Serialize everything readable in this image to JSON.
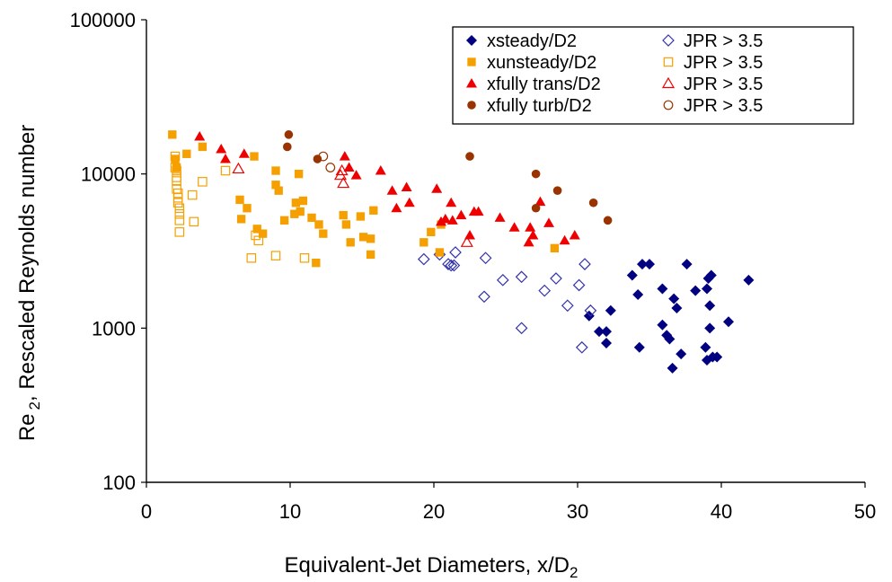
{
  "chart_data": {
    "type": "scatter",
    "title": "",
    "xlabel": "Equivalent-Jet Diameters, x/D",
    "xlabel_sub": "2",
    "ylabel": "Re",
    "ylabel_sub": "2",
    "ylabel_rest": ", Rescaled Reynolds number",
    "xlim": [
      0,
      50
    ],
    "ylim": [
      100,
      100000
    ],
    "yscale": "log",
    "x_ticks": [
      0,
      10,
      20,
      30,
      40,
      50
    ],
    "y_ticks": [
      100,
      1000,
      10000,
      100000
    ],
    "x_tick_labels": [
      "0",
      "10",
      "20",
      "30",
      "40",
      "50"
    ],
    "y_tick_labels": [
      "100",
      "1000",
      "10000",
      "100000"
    ],
    "grid": false,
    "legend_position": "top-right",
    "series": [
      {
        "name": "xsteady/D2",
        "marker": "diamond",
        "filled": true,
        "color": "#000080",
        "points": [
          [
            30.8,
            1200
          ],
          [
            31.5,
            950
          ],
          [
            32.0,
            800
          ],
          [
            32.0,
            950
          ],
          [
            32.3,
            1300
          ],
          [
            33.8,
            2200
          ],
          [
            34.2,
            1650
          ],
          [
            34.3,
            750
          ],
          [
            34.5,
            2600
          ],
          [
            35.0,
            2600
          ],
          [
            35.9,
            1800
          ],
          [
            35.9,
            1050
          ],
          [
            36.2,
            900
          ],
          [
            36.4,
            850
          ],
          [
            36.6,
            550
          ],
          [
            36.7,
            1550
          ],
          [
            36.9,
            1350
          ],
          [
            37.2,
            680
          ],
          [
            37.6,
            2600
          ],
          [
            38.2,
            1750
          ],
          [
            38.9,
            750
          ],
          [
            39.0,
            620
          ],
          [
            39.0,
            1800
          ],
          [
            39.1,
            2100
          ],
          [
            39.2,
            1400
          ],
          [
            39.2,
            1000
          ],
          [
            39.3,
            2200
          ],
          [
            39.4,
            650
          ],
          [
            39.7,
            650
          ],
          [
            40.5,
            1100
          ],
          [
            41.9,
            2050
          ]
        ]
      },
      {
        "name": "JPR > 3.5",
        "marker": "diamond",
        "filled": false,
        "color": "#3333aa",
        "points": [
          [
            19.3,
            2800
          ],
          [
            20.4,
            3000
          ],
          [
            21.0,
            2600
          ],
          [
            21.2,
            2550
          ],
          [
            21.4,
            2550
          ],
          [
            21.5,
            3100
          ],
          [
            23.5,
            1600
          ],
          [
            23.6,
            2850
          ],
          [
            24.8,
            2050
          ],
          [
            26.1,
            1000
          ],
          [
            26.1,
            2150
          ],
          [
            27.7,
            1750
          ],
          [
            28.5,
            2100
          ],
          [
            29.3,
            1400
          ],
          [
            30.1,
            1900
          ],
          [
            30.3,
            750
          ],
          [
            30.5,
            2600
          ],
          [
            30.9,
            1300
          ]
        ]
      },
      {
        "name": "xunsteady/D2",
        "marker": "square",
        "filled": true,
        "color": "#f5a000",
        "points": [
          [
            1.8,
            18000
          ],
          [
            2.0,
            12500
          ],
          [
            2.1,
            11000
          ],
          [
            2.8,
            13500
          ],
          [
            3.9,
            15000
          ],
          [
            6.5,
            6800
          ],
          [
            6.6,
            5100
          ],
          [
            7.0,
            6000
          ],
          [
            7.5,
            13000
          ],
          [
            7.7,
            4400
          ],
          [
            8.1,
            4100
          ],
          [
            9.0,
            8500
          ],
          [
            9.0,
            10500
          ],
          [
            9.2,
            7800
          ],
          [
            9.6,
            5000
          ],
          [
            10.3,
            5500
          ],
          [
            10.4,
            6500
          ],
          [
            10.6,
            10000
          ],
          [
            10.7,
            5700
          ],
          [
            10.9,
            6700
          ],
          [
            11.5,
            5200
          ],
          [
            11.8,
            2650
          ],
          [
            12.0,
            4700
          ],
          [
            12.3,
            4100
          ],
          [
            13.7,
            5400
          ],
          [
            13.9,
            4700
          ],
          [
            14.2,
            3600
          ],
          [
            14.9,
            5300
          ],
          [
            15.1,
            3900
          ],
          [
            15.6,
            3800
          ],
          [
            15.6,
            3000
          ],
          [
            15.8,
            5800
          ],
          [
            19.3,
            3600
          ],
          [
            19.8,
            4200
          ],
          [
            20.4,
            3100
          ],
          [
            20.5,
            4700
          ],
          [
            28.4,
            3300
          ]
        ]
      },
      {
        "name": "JPR > 3.5",
        "marker": "square",
        "filled": false,
        "color": "#f5a000",
        "points": [
          [
            2.0,
            13000
          ],
          [
            2.0,
            11000
          ],
          [
            2.1,
            10500
          ],
          [
            2.1,
            9500
          ],
          [
            2.1,
            9000
          ],
          [
            2.1,
            8000
          ],
          [
            2.2,
            7500
          ],
          [
            2.2,
            7000
          ],
          [
            2.2,
            6500
          ],
          [
            2.3,
            6000
          ],
          [
            2.3,
            5500
          ],
          [
            2.3,
            5000
          ],
          [
            2.3,
            4200
          ],
          [
            3.2,
            7300
          ],
          [
            3.3,
            4900
          ],
          [
            3.9,
            8900
          ],
          [
            5.5,
            10500
          ],
          [
            7.3,
            2850
          ],
          [
            7.6,
            4000
          ],
          [
            7.8,
            3700
          ],
          [
            9.0,
            2950
          ],
          [
            11.0,
            2850
          ]
        ]
      },
      {
        "name": "xfully trans/D2",
        "marker": "triangle",
        "filled": true,
        "color": "#ee0000",
        "points": [
          [
            3.7,
            17500
          ],
          [
            5.2,
            14500
          ],
          [
            5.5,
            12500
          ],
          [
            6.8,
            13500
          ],
          [
            13.8,
            13000
          ],
          [
            14.1,
            11000
          ],
          [
            14.6,
            9800
          ],
          [
            16.3,
            10500
          ],
          [
            17.1,
            7800
          ],
          [
            17.4,
            6000
          ],
          [
            18.1,
            8200
          ],
          [
            18.3,
            6500
          ],
          [
            20.2,
            8000
          ],
          [
            20.5,
            4900
          ],
          [
            20.8,
            5100
          ],
          [
            21.2,
            6500
          ],
          [
            21.3,
            5000
          ],
          [
            21.9,
            5400
          ],
          [
            22.5,
            4000
          ],
          [
            22.8,
            5700
          ],
          [
            23.1,
            5700
          ],
          [
            24.6,
            5200
          ],
          [
            25.6,
            4500
          ],
          [
            26.6,
            3600
          ],
          [
            26.7,
            4500
          ],
          [
            26.9,
            4000
          ],
          [
            27.4,
            6600
          ],
          [
            28.0,
            4800
          ],
          [
            29.1,
            3700
          ],
          [
            29.8,
            4000
          ]
        ]
      },
      {
        "name": "JPR > 3.5",
        "marker": "triangle",
        "filled": false,
        "color": "#ee0000",
        "points": [
          [
            6.4,
            10800
          ],
          [
            13.5,
            9800
          ],
          [
            13.6,
            10500
          ],
          [
            13.7,
            8700
          ],
          [
            22.3,
            3600
          ]
        ]
      },
      {
        "name": "xfully turb/D2",
        "marker": "circle",
        "filled": true,
        "color": "#993300",
        "points": [
          [
            9.8,
            15000
          ],
          [
            9.9,
            18000
          ],
          [
            11.9,
            12500
          ],
          [
            22.5,
            13000
          ],
          [
            27.1,
            10000
          ],
          [
            27.1,
            6000
          ],
          [
            28.6,
            7800
          ],
          [
            31.1,
            6500
          ],
          [
            32.1,
            5000
          ]
        ]
      },
      {
        "name": "JPR > 3.5",
        "marker": "circle",
        "filled": false,
        "color": "#993300",
        "points": [
          [
            12.3,
            13000
          ],
          [
            12.8,
            11000
          ]
        ]
      }
    ],
    "legend": [
      {
        "label": "xsteady/D2",
        "series": 0
      },
      {
        "label": "JPR > 3.5",
        "series": 1
      },
      {
        "label": "xunsteady/D2",
        "series": 2
      },
      {
        "label": "JPR > 3.5",
        "series": 3
      },
      {
        "label": "xfully trans/D2",
        "series": 4
      },
      {
        "label": "JPR > 3.5",
        "series": 5
      },
      {
        "label": "xfully turb/D2",
        "series": 6
      },
      {
        "label": "JPR > 3.5",
        "series": 7
      }
    ]
  }
}
